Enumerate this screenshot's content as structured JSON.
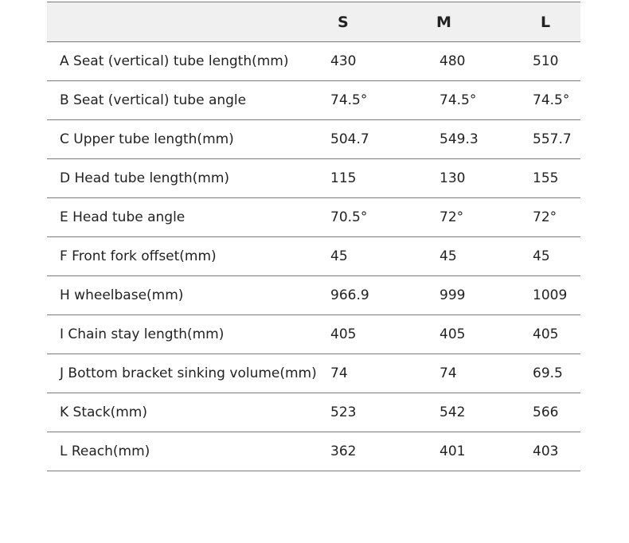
{
  "table": {
    "headers": [
      "",
      "S",
      "M",
      "L"
    ],
    "rows": [
      {
        "label": "A Seat (vertical) tube length(mm)",
        "s": "430",
        "m": "480",
        "l": "510"
      },
      {
        "label": "B Seat (vertical) tube angle",
        "s": "74.5°",
        "m": "74.5°",
        "l": "74.5°"
      },
      {
        "label": "C Upper tube length(mm)",
        "s": "504.7",
        "m": "549.3",
        "l": "557.7"
      },
      {
        "label": "D Head tube length(mm)",
        "s": "115",
        "m": "130",
        "l": "155"
      },
      {
        "label": "E Head tube angle",
        "s": "70.5°",
        "m": "72°",
        "l": "72°"
      },
      {
        "label": "F Front fork offset(mm)",
        "s": "45",
        "m": "45",
        "l": "45"
      },
      {
        "label": "H wheelbase(mm)",
        "s": "966.9",
        "m": "999",
        "l": "1009"
      },
      {
        "label": "I Chain stay length(mm)",
        "s": "405",
        "m": "405",
        "l": "405"
      },
      {
        "label": "J Bottom bracket sinking volume(mm)",
        "s": "74",
        "m": "74",
        "l": "69.5"
      },
      {
        "label": "K Stack(mm)",
        "s": "523",
        "m": "542",
        "l": "566"
      },
      {
        "label": "L Reach(mm)",
        "s": "362",
        "m": "401",
        "l": "403"
      }
    ]
  },
  "colors": {
    "header_background": "#f0f0f0",
    "rule": "#7a7a7a",
    "text": "#222222"
  }
}
